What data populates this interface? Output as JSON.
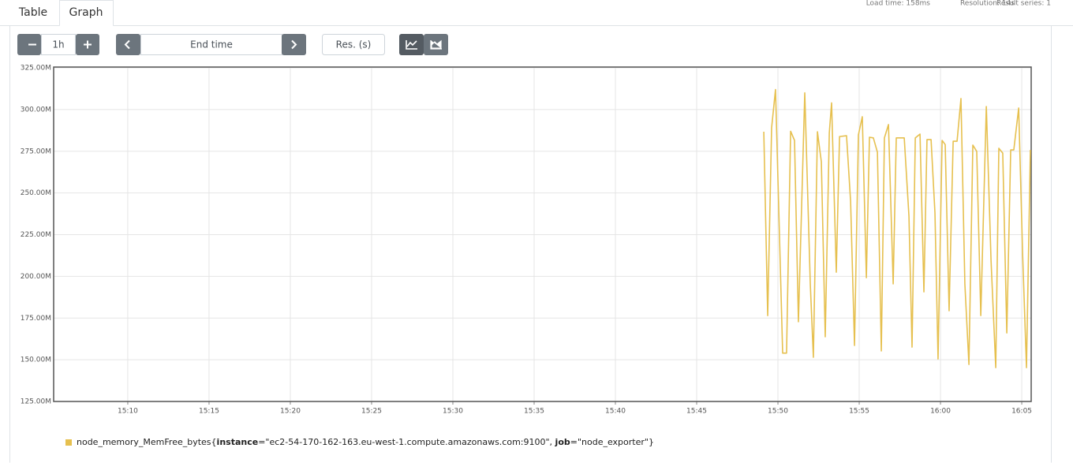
{
  "tabs": [
    "Table",
    "Graph"
  ],
  "stats": {
    "load_time": "Load time: 158ms",
    "resolution": "Resolution: 14s",
    "result_series": "Result series: 1"
  },
  "controls": {
    "range": "1h",
    "end_time": "End time",
    "resolution": "Res. (s)"
  },
  "chart_data": {
    "type": "line",
    "xlim": [
      905.44,
      965.58
    ],
    "xticks": [
      {
        "value": 910,
        "label": "15:10"
      },
      {
        "value": 915,
        "label": "15:15"
      },
      {
        "value": 920,
        "label": "15:20"
      },
      {
        "value": 925,
        "label": "15:25"
      },
      {
        "value": 930,
        "label": "15:30"
      },
      {
        "value": 935,
        "label": "15:35"
      },
      {
        "value": 940,
        "label": "15:40"
      },
      {
        "value": 945,
        "label": "15:45"
      },
      {
        "value": 950,
        "label": "15:50"
      },
      {
        "value": 955,
        "label": "15:55"
      },
      {
        "value": 960,
        "label": "16:00"
      },
      {
        "value": 965,
        "label": "16:05"
      }
    ],
    "ylim": [
      125000000,
      325000000
    ],
    "yticks": [
      {
        "value": 125000000,
        "label": "125.00M"
      },
      {
        "value": 150000000,
        "label": "150.00M"
      },
      {
        "value": 175000000,
        "label": "175.00M"
      },
      {
        "value": 200000000,
        "label": "200.00M"
      },
      {
        "value": 225000000,
        "label": "225.00M"
      },
      {
        "value": 250000000,
        "label": "250.00M"
      },
      {
        "value": 275000000,
        "label": "275.00M"
      },
      {
        "value": 300000000,
        "label": "300.00M"
      },
      {
        "value": 325000000,
        "label": "325.00M"
      }
    ],
    "grid": true,
    "x": [
      949.13,
      949.37,
      949.61,
      949.85,
      950.29,
      950.53,
      950.78,
      951.02,
      951.26,
      951.65,
      951.99,
      952.18,
      952.43,
      952.67,
      952.91,
      953.16,
      953.3,
      953.59,
      953.79,
      954.22,
      954.47,
      954.71,
      954.95,
      955.19,
      955.44,
      955.63,
      955.87,
      956.12,
      956.36,
      956.55,
      956.8,
      957.09,
      957.28,
      957.77,
      958.06,
      958.25,
      958.45,
      958.74,
      958.98,
      959.17,
      959.42,
      959.66,
      959.85,
      960.1,
      960.29,
      960.53,
      960.78,
      961.02,
      961.26,
      961.5,
      961.75,
      961.99,
      962.23,
      962.48,
      962.82,
      963.11,
      963.4,
      963.59,
      963.83,
      964.08,
      964.32,
      964.51,
      964.81,
      965.05,
      965.29,
      965.53
    ],
    "series": [
      {
        "name": "node_memory_MemFree_bytes",
        "label_parts": [
          "{",
          "instance",
          "=\"ec2-54-170-162-163.eu-west-1.compute.amazonaws.com:9100\", ",
          "job",
          "=\"node_exporter\"}"
        ],
        "color": "#e6c04f",
        "values": [
          286700000,
          176500000,
          289000000,
          312000000,
          154000000,
          154000000,
          287000000,
          281500000,
          172800000,
          310000000,
          195500000,
          151500000,
          286700000,
          268700000,
          163800000,
          286000000,
          304000000,
          202500000,
          283800000,
          284300000,
          245000000,
          158600000,
          284800000,
          295700000,
          199200000,
          283400000,
          283000000,
          274400000,
          155300000,
          283000000,
          291000000,
          195500000,
          283000000,
          283000000,
          236100000,
          157600000,
          283000000,
          285300000,
          190700000,
          282000000,
          282000000,
          238000000,
          150500000,
          281500000,
          279000000,
          179400000,
          281000000,
          281000000,
          306600000,
          195500000,
          147200000,
          278700000,
          274900000,
          176500000,
          301800000,
          209600000,
          145300000,
          276800000,
          273900000,
          166100000,
          275800000,
          275800000,
          300900000,
          214400000,
          145300000,
          275800000
        ]
      }
    ]
  }
}
